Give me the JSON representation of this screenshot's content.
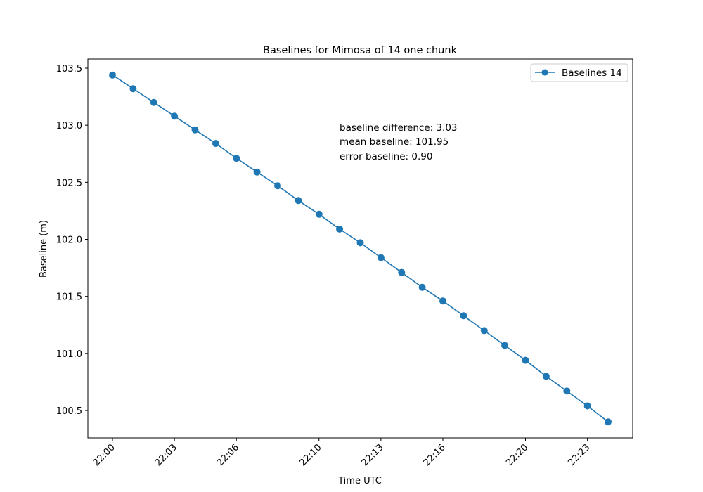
{
  "chart_data": {
    "type": "line",
    "title": "Baselines for Mimosa of 14 one chunk",
    "xlabel": "Time UTC",
    "ylabel": "Baseline (m)",
    "x": [
      "22:00",
      "22:01",
      "22:02",
      "22:03",
      "22:04",
      "22:05",
      "22:06",
      "22:07",
      "22:08",
      "22:09",
      "22:10",
      "22:11",
      "22:12",
      "22:13",
      "22:14",
      "22:15",
      "22:16",
      "22:17",
      "22:18",
      "22:19",
      "22:20",
      "22:21",
      "22:22",
      "22:23",
      "22:24"
    ],
    "series": [
      {
        "name": "Baselines 14",
        "color": "#1f77b4",
        "marker": "circle",
        "values": [
          103.44,
          103.32,
          103.2,
          103.08,
          102.96,
          102.84,
          102.71,
          102.59,
          102.47,
          102.34,
          102.22,
          102.09,
          101.97,
          101.84,
          101.71,
          101.58,
          101.46,
          101.33,
          101.2,
          101.07,
          100.94,
          100.8,
          100.67,
          100.54,
          100.4
        ]
      }
    ],
    "xticks": [
      "22:00",
      "22:03",
      "22:06",
      "22:10",
      "22:13",
      "22:16",
      "22:20",
      "22:23"
    ],
    "yticks": [
      "100.5",
      "101.0",
      "101.5",
      "102.0",
      "102.5",
      "103.0",
      "103.5"
    ],
    "ylim": [
      100.26,
      103.58
    ],
    "legend": "top-right",
    "grid": false,
    "annotations": [
      "baseline difference: 3.03",
      "mean baseline: 101.95",
      "error baseline: 0.90"
    ]
  }
}
